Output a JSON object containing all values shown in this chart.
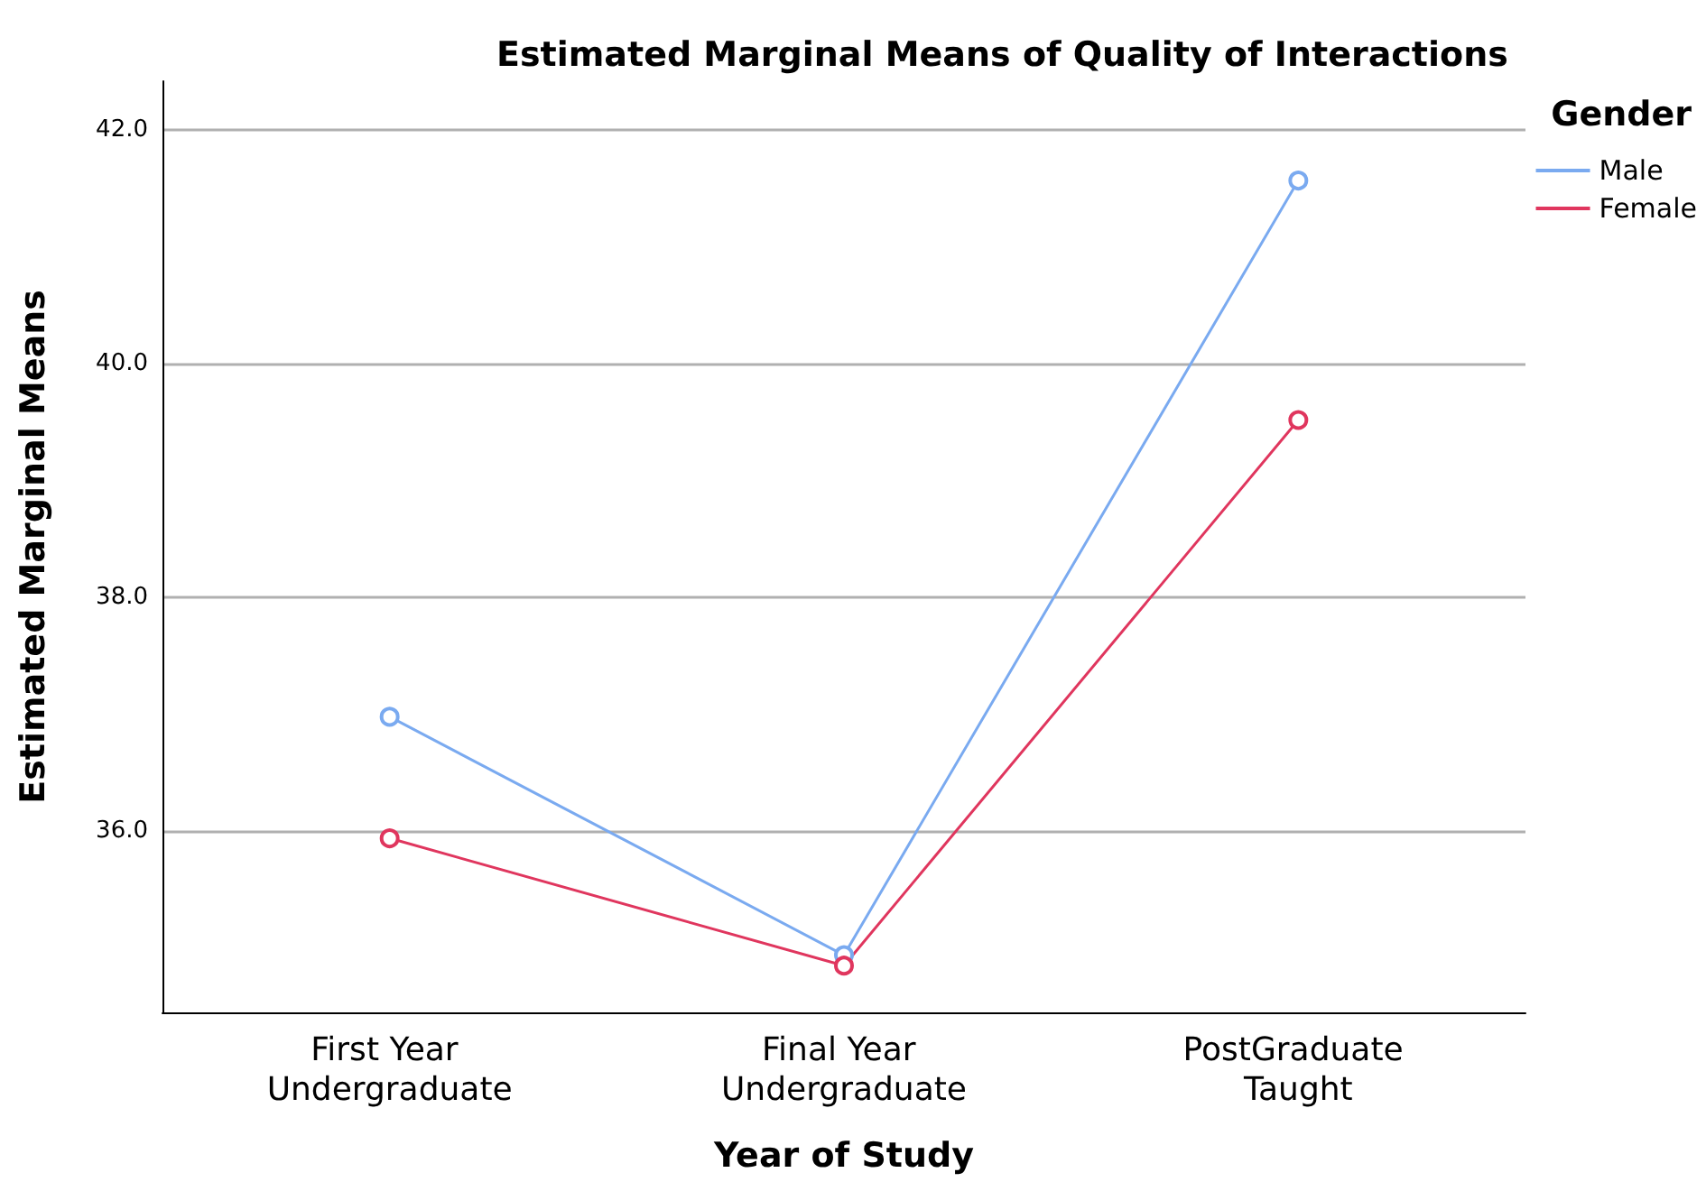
{
  "chart_data": {
    "type": "line",
    "title": "Estimated Marginal Means of Quality of Interactions",
    "xlabel": "Year of Study",
    "ylabel": "Estimated Marginal Means",
    "legend_title": "Gender",
    "categories": [
      "First Year Undergraduate",
      "Final Year Undergraduate",
      "PostGraduate Taught"
    ],
    "series": [
      {
        "name": "Male",
        "color": "#7aaaf0",
        "values": [
          36.98,
          34.94,
          41.57
        ]
      },
      {
        "name": "Female",
        "color": "#e0365e",
        "values": [
          35.94,
          34.85,
          39.52
        ]
      }
    ],
    "ylim": [
      34.45,
      42.42
    ],
    "yticks": [
      {
        "value": 36,
        "label": "36.0"
      },
      {
        "value": 38,
        "label": "38.0"
      },
      {
        "value": 40,
        "label": "40.0"
      },
      {
        "value": 42,
        "label": "42.0"
      }
    ],
    "grid": "y",
    "legend": "top right",
    "marker": "circle",
    "line_style": "solid"
  }
}
